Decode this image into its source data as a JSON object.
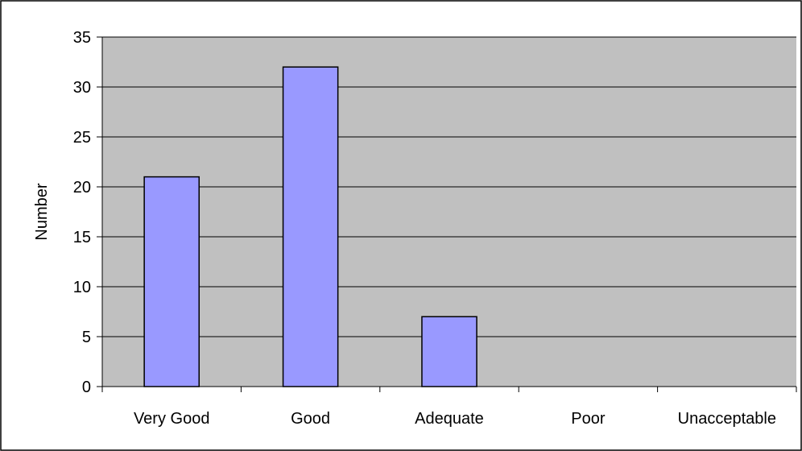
{
  "chart_data": {
    "type": "bar",
    "title": "",
    "xlabel": "",
    "ylabel": "Number",
    "categories": [
      "Very Good",
      "Good",
      "Adequate",
      "Poor",
      "Unacceptable"
    ],
    "values": [
      21,
      32,
      7,
      0,
      0
    ],
    "ylim": [
      0,
      35
    ],
    "yticks": [
      0,
      5,
      10,
      15,
      20,
      25,
      30,
      35
    ],
    "grid": true,
    "legend": "none",
    "colors": {
      "plot_background": "#c0c0c0",
      "bar_fill": "#9999ff",
      "bar_stroke": "#000000",
      "grid": "#000000",
      "frame": "#000000"
    }
  }
}
